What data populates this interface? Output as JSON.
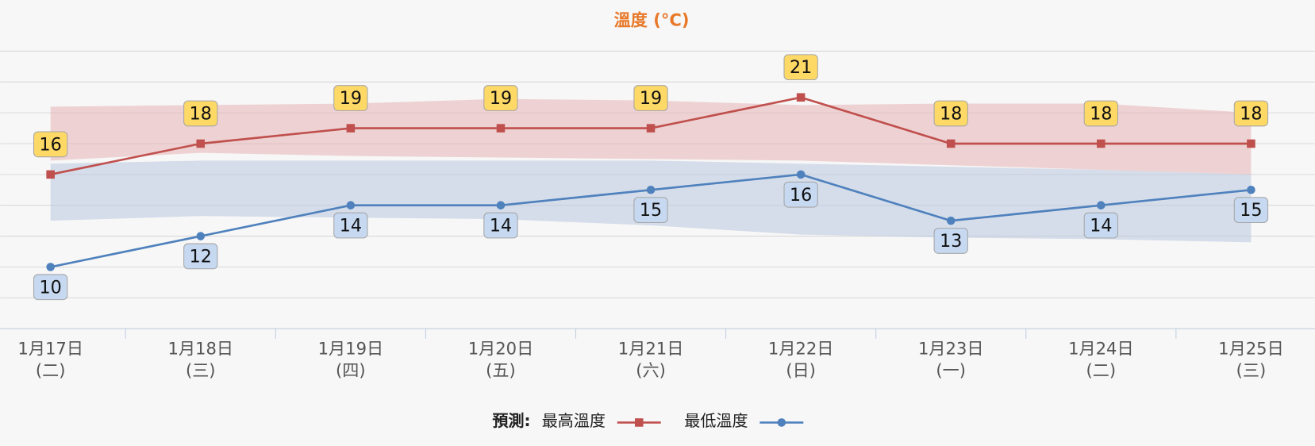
{
  "chart_data": {
    "type": "line",
    "title": "溫度 (°C)",
    "categories": [
      "1月17日",
      "1月18日",
      "1月19日",
      "1月20日",
      "1月21日",
      "1月22日",
      "1月23日",
      "1月24日",
      "1月25日"
    ],
    "weekdays": [
      "(二)",
      "(三)",
      "(四)",
      "(五)",
      "(六)",
      "(日)",
      "(一)",
      "(二)",
      "(三)"
    ],
    "legend_title": "預測:",
    "series": [
      {
        "name": "最高溫度",
        "color": "#c0504d",
        "marker": "square",
        "label_color": "#ffd966",
        "label_side": "above",
        "values": [
          16,
          18,
          19,
          19,
          19,
          21,
          18,
          18,
          18
        ],
        "band_low": [
          16.9,
          17.4,
          17.2,
          17.1,
          17.0,
          16.9,
          16.6,
          16.3,
          16.0
        ],
        "band_high": [
          20.4,
          20.5,
          20.6,
          20.9,
          20.8,
          20.5,
          20.6,
          20.6,
          20.0
        ],
        "band_color": "#e8b4b6"
      },
      {
        "name": "最低溫度",
        "color": "#4f81bd",
        "marker": "circle",
        "label_color": "#c6d9f1",
        "label_side": "below",
        "values": [
          10,
          12,
          14,
          14,
          15,
          16,
          13,
          14,
          15
        ],
        "band_low": [
          13.0,
          13.3,
          13.2,
          13.1,
          12.7,
          12.1,
          11.9,
          11.8,
          11.6
        ],
        "band_high": [
          16.7,
          16.9,
          16.9,
          16.9,
          16.9,
          16.7,
          16.5,
          16.3,
          16.0
        ],
        "band_color": "#b9c9e0"
      }
    ],
    "ylim": [
      6,
      24
    ],
    "yticks": [
      6,
      8,
      10,
      12,
      14,
      16,
      18,
      20,
      22,
      24
    ],
    "grid": true
  }
}
